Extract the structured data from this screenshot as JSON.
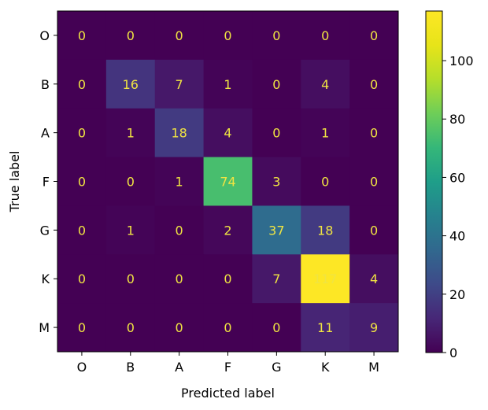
{
  "chart_data": {
    "type": "heatmap",
    "title": "",
    "xlabel": "Predicted label",
    "ylabel": "True label",
    "x_categories": [
      "O",
      "B",
      "A",
      "F",
      "G",
      "K",
      "M"
    ],
    "y_categories": [
      "O",
      "B",
      "A",
      "F",
      "G",
      "K",
      "M"
    ],
    "values": [
      [
        0,
        0,
        0,
        0,
        0,
        0,
        0
      ],
      [
        0,
        16,
        7,
        1,
        0,
        4,
        0
      ],
      [
        0,
        1,
        18,
        4,
        0,
        1,
        0
      ],
      [
        0,
        0,
        1,
        74,
        3,
        0,
        0
      ],
      [
        0,
        1,
        0,
        2,
        37,
        18,
        0
      ],
      [
        0,
        0,
        0,
        0,
        7,
        117,
        4
      ],
      [
        0,
        0,
        0,
        0,
        0,
        11,
        9
      ]
    ],
    "colormap": "viridis",
    "vmin": 0,
    "vmax": 117,
    "colorbar_ticks": [
      0,
      20,
      40,
      60,
      80,
      100
    ],
    "label_color": "#f0e442",
    "grid": false
  }
}
